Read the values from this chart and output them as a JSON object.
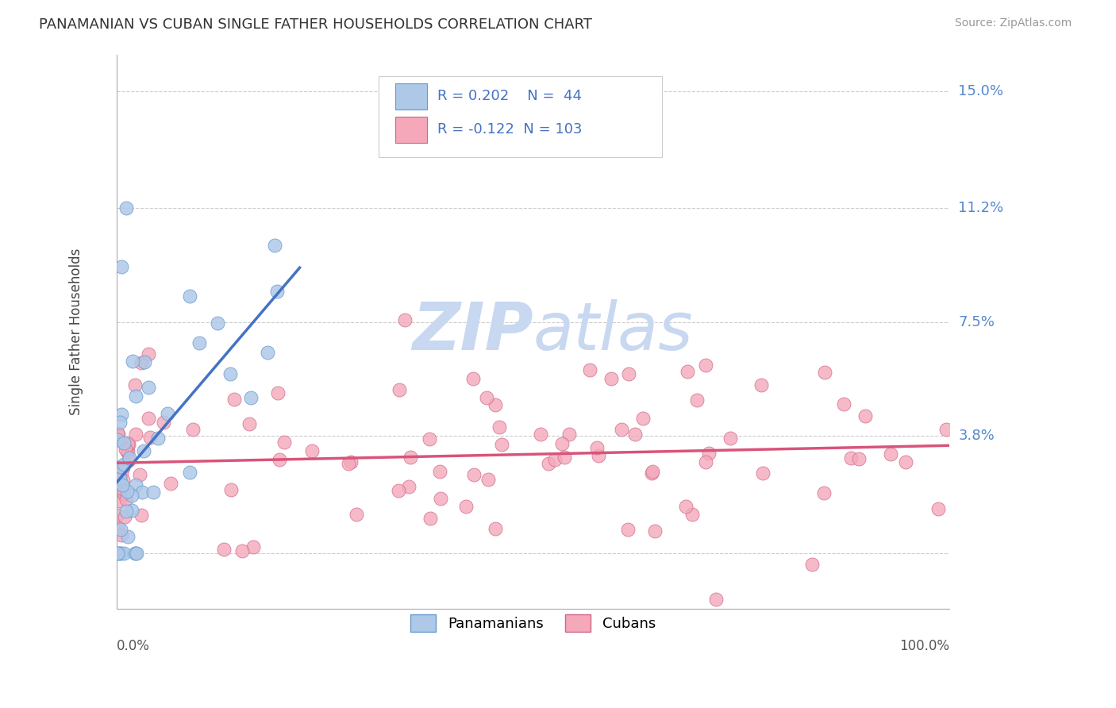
{
  "title": "PANAMANIAN VS CUBAN SINGLE FATHER HOUSEHOLDS CORRELATION CHART",
  "source": "Source: ZipAtlas.com",
  "ylabel": "Single Father Households",
  "ytick_vals": [
    0.0,
    0.038,
    0.075,
    0.112,
    0.15
  ],
  "ytick_labels": [
    "",
    "3.8%",
    "7.5%",
    "11.2%",
    "15.0%"
  ],
  "xmin": 0.0,
  "xmax": 1.0,
  "ymin": -0.018,
  "ymax": 0.162,
  "pan_R": 0.202,
  "pan_N": 44,
  "cub_R": -0.122,
  "cub_N": 103,
  "pan_color": "#aec8e8",
  "cub_color": "#f4a8ba",
  "pan_line_color": "#4472c4",
  "cub_line_color": "#d9537a",
  "pan_edge_color": "#6699cc",
  "cub_edge_color": "#cc6688",
  "legend_color": "#4472c4",
  "watermark_zip": "ZIP",
  "watermark_atlas": "atlas",
  "watermark_color": "#c8d8f0",
  "grid_color": "#cccccc",
  "background_color": "#ffffff",
  "pan_seed": 42,
  "cub_seed": 123
}
